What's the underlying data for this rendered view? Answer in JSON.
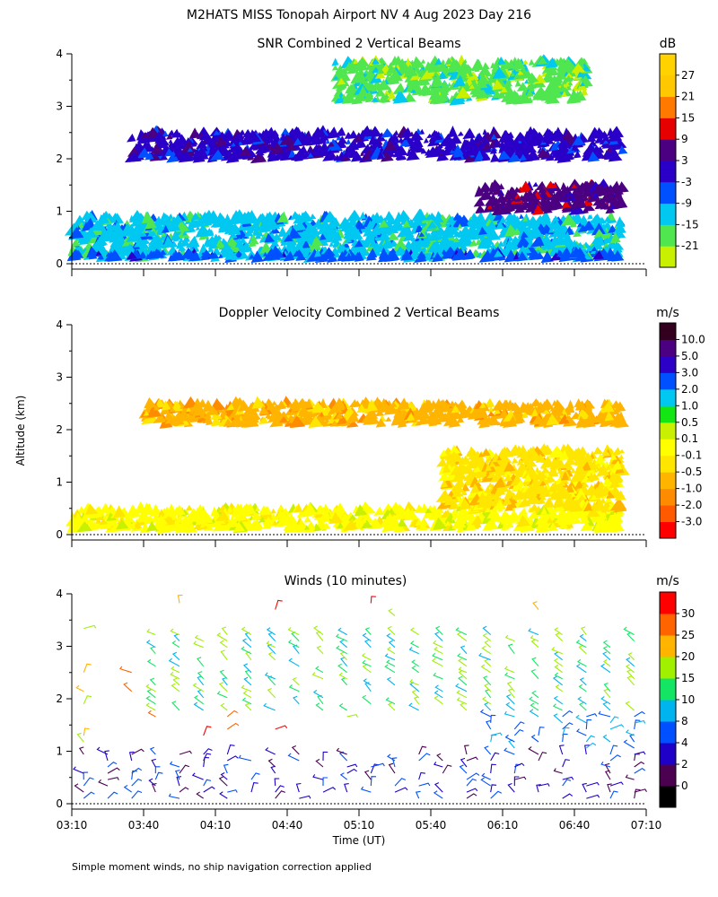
{
  "header": {
    "title": "M2HATS MISS Tonopah Airport NV    4 Aug 2023 Day 216"
  },
  "footer": {
    "note": "Simple moment winds, no ship navigation correction applied"
  },
  "shared": {
    "ylabel": "Altitude (km)",
    "xlabel": "Time (UT)",
    "x_tick_labels": [
      "03:10",
      "03:40",
      "04:10",
      "04:40",
      "05:10",
      "05:40",
      "06:10",
      "06:40",
      "07:10"
    ],
    "y_tick_labels": [
      "0",
      "1",
      "2",
      "3",
      "4"
    ]
  },
  "chart_data": [
    {
      "id": "snr",
      "type": "heatmap",
      "title": "SNR Combined 2 Vertical Beams",
      "xlabel": "Time (UT)",
      "ylabel": "Altitude (km)",
      "xlim": [
        "03:10",
        "07:10"
      ],
      "ylim": [
        0,
        4
      ],
      "colorbar": {
        "unit": "dB",
        "levels": [
          -21,
          -15,
          -9,
          -3,
          3,
          9,
          15,
          21,
          27
        ],
        "labels": [
          "-21",
          "-15",
          "-9",
          "-3",
          "3",
          "9",
          "15",
          "21",
          "27"
        ],
        "colors": [
          "#c8f000",
          "#50e650",
          "#00c8f0",
          "#0050ff",
          "#2a00c8",
          "#4b0082",
          "#e60000",
          "#ff7800",
          "#ffc800",
          "#ffd200"
        ]
      },
      "layers": [
        {
          "t_start": "03:10",
          "t_end": "07:00",
          "alt_bottom": 0.1,
          "alt_top": 0.9,
          "level": "-15"
        },
        {
          "t_start": "03:10",
          "t_end": "07:00",
          "alt_bottom": 0.1,
          "alt_top": 0.2,
          "level": "-9"
        },
        {
          "t_start": "03:35",
          "t_end": "07:00",
          "alt_bottom": 2.0,
          "alt_top": 2.5,
          "level": "-3"
        },
        {
          "t_start": "06:00",
          "t_end": "07:00",
          "alt_bottom": 1.0,
          "alt_top": 1.5,
          "level": "3"
        },
        {
          "t_start": "05:00",
          "t_end": "06:45",
          "alt_bottom": 3.1,
          "alt_top": 3.85,
          "level": "-21"
        }
      ]
    },
    {
      "id": "doppler",
      "type": "heatmap",
      "title": "Doppler Velocity Combined 2 Vertical Beams",
      "xlabel": "Time (UT)",
      "ylabel": "Altitude (km)",
      "xlim": [
        "03:10",
        "07:10"
      ],
      "ylim": [
        0,
        4
      ],
      "colorbar": {
        "unit": "m/s",
        "levels": [
          -3.0,
          -2.0,
          -1.0,
          -0.5,
          -0.1,
          0.1,
          0.5,
          1.0,
          2.0,
          3.0,
          5.0,
          10.0
        ],
        "labels": [
          "-3.0",
          "-2.0",
          "-1.0",
          "-0.5",
          "-0.1",
          "0.1",
          "0.5",
          "1.0",
          "2.0",
          "3.0",
          "5.0",
          "10.0"
        ],
        "colors": [
          "#ff0000",
          "#ff5a00",
          "#ff8c00",
          "#ffb400",
          "#ffe600",
          "#ffff00",
          "#c8f000",
          "#14e614",
          "#00c8f0",
          "#0050ff",
          "#2d00c8",
          "#4b0082",
          "#32001e"
        ]
      },
      "layers": [
        {
          "t_start": "03:10",
          "t_end": "07:00",
          "alt_bottom": 0.1,
          "alt_top": 0.5,
          "level": "-0.1"
        },
        {
          "t_start": "03:40",
          "t_end": "07:00",
          "alt_bottom": 2.1,
          "alt_top": 2.5,
          "level": "-1.0"
        },
        {
          "t_start": "05:45",
          "t_end": "07:00",
          "alt_bottom": 0.5,
          "alt_top": 1.6,
          "level": "-0.5"
        }
      ]
    },
    {
      "id": "winds",
      "type": "scatter",
      "title": "Winds (10 minutes)",
      "xlabel": "Time (UT)",
      "ylabel": "Altitude (km)",
      "xlim": [
        "03:10",
        "07:10"
      ],
      "ylim": [
        0,
        4
      ],
      "colorbar": {
        "unit": "m/s",
        "levels": [
          0,
          2,
          4,
          8,
          10,
          15,
          20,
          25,
          30
        ],
        "labels": [
          "0",
          "2",
          "4",
          "8",
          "10",
          "15",
          "20",
          "25",
          "30"
        ],
        "colors": [
          "#000000",
          "#4b0050",
          "#1e00c8",
          "#0050ff",
          "#00b4f0",
          "#14e664",
          "#a0f000",
          "#ffb400",
          "#ff6400",
          "#ff0000"
        ]
      },
      "marks": "wind barbs every 10 minutes, 0.1–4.0 km"
    }
  ]
}
